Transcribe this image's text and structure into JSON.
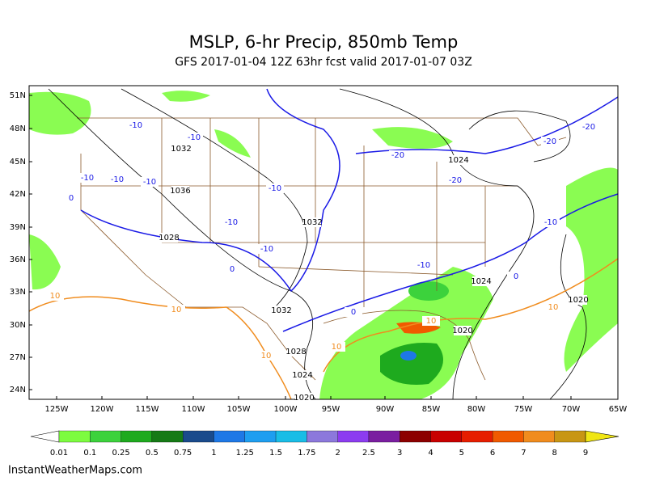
{
  "header": {
    "title": "MSLP, 6-hr Precip, 850mb Temp",
    "subtitle": "GFS 2017-01-04 12Z 63hr fcst valid 2017-01-07 03Z"
  },
  "map": {
    "lat_labels": [
      "51N",
      "48N",
      "45N",
      "42N",
      "39N",
      "36N",
      "33N",
      "30N",
      "27N",
      "24N"
    ],
    "lon_labels": [
      "125W",
      "120W",
      "115W",
      "110W",
      "105W",
      "100W",
      "95W",
      "90W",
      "85W",
      "80W",
      "75W",
      "70W",
      "65W"
    ],
    "isobar_color": "#000000",
    "isobar_labels": [
      "1032",
      "1036",
      "1028",
      "1032",
      "1032",
      "1028",
      "1024",
      "1020",
      "1024",
      "1024",
      "1020",
      "1020"
    ],
    "cold_isotherm_color": "#1a1ae6",
    "cold_isotherm_labels": [
      "-10",
      "-10",
      "-10",
      "-10",
      "-10",
      "-10",
      "-10",
      "-10",
      "-10",
      "-10",
      "-20",
      "-20",
      "-20",
      "-20",
      "0",
      "0",
      "0",
      "0"
    ],
    "warm_isotherm_color": "#f08c1e",
    "warm_isotherm_labels": [
      "10",
      "10",
      "10",
      "10",
      "10",
      "10"
    ]
  },
  "legend": {
    "labels": [
      "0.01",
      "0.1",
      "0.25",
      "0.5",
      "0.75",
      "1",
      "1.25",
      "1.5",
      "1.75",
      "2",
      "2.5",
      "3",
      "4",
      "5",
      "6",
      "7",
      "8",
      "9"
    ],
    "colors": [
      "#7dfc3f",
      "#3cd23c",
      "#1eaa1e",
      "#167a16",
      "#1a4b8c",
      "#1e78e6",
      "#1e9ef0",
      "#19bde6",
      "#8c78dc",
      "#8c3cf0",
      "#7a1ea0",
      "#8c0000",
      "#c80000",
      "#e61e00",
      "#f05a00",
      "#f08c1e",
      "#c89614"
    ],
    "under_color": "#ffffff",
    "over_color": "#f0e614"
  },
  "footer": {
    "credit": "InstantWeatherMaps.com"
  }
}
